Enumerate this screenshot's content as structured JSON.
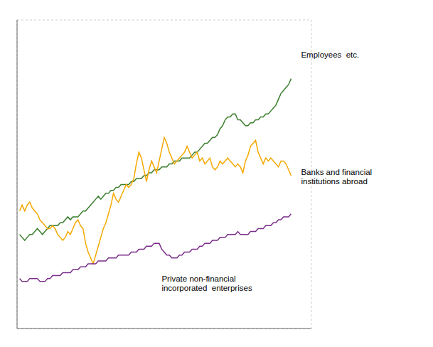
{
  "chart_data": {
    "type": "line",
    "x": [
      0,
      1,
      2,
      3,
      4,
      5,
      6,
      7,
      8,
      9,
      10,
      11,
      12,
      13,
      14,
      15,
      16,
      17,
      18,
      19,
      20,
      21,
      22,
      23,
      24,
      25,
      26,
      27,
      28,
      29,
      30,
      31,
      32,
      33,
      34,
      35,
      36,
      37,
      38,
      39,
      40,
      41,
      42,
      43,
      44,
      45,
      46,
      47,
      48,
      49,
      50,
      51,
      52,
      53,
      54,
      55,
      56,
      57,
      58,
      59,
      60,
      61,
      62,
      63,
      64,
      65,
      66,
      67,
      68,
      69,
      70,
      71,
      72,
      73,
      74,
      75,
      76,
      77,
      78,
      79,
      80,
      81,
      82,
      83,
      84,
      85,
      86,
      87,
      88,
      89,
      90,
      91,
      92,
      93,
      94,
      95,
      96,
      97,
      98,
      99,
      100,
      101,
      102,
      103,
      104,
      105,
      106,
      107
    ],
    "series": [
      {
        "name": "Employees  etc.",
        "color": "#3a7d2c",
        "values": [
          62,
          61,
          60,
          61,
          62,
          62,
          63,
          64,
          63,
          62,
          63,
          64,
          65,
          65,
          65,
          65,
          66,
          66,
          67,
          68,
          67,
          68,
          68,
          68,
          69,
          70,
          70,
          71,
          72,
          73,
          74,
          75,
          74,
          75,
          76,
          76,
          77,
          77,
          78,
          78,
          79,
          79,
          79,
          79,
          80,
          80,
          81,
          81,
          81,
          82,
          82,
          83,
          83,
          84,
          84,
          84,
          85,
          85,
          85,
          86,
          86,
          87,
          87,
          87,
          88,
          88,
          88,
          88,
          89,
          90,
          90,
          91,
          92,
          93,
          93,
          94,
          95,
          95,
          96,
          98,
          99,
          101,
          102,
          102,
          103,
          103,
          101,
          101,
          100,
          99,
          99,
          100,
          100,
          101,
          101,
          102,
          102,
          103,
          103,
          104,
          105,
          106,
          108,
          110,
          111,
          112,
          113,
          115
        ]
      },
      {
        "name": "Banks and financial\ninstitutions abroad",
        "color": "#f5a800",
        "values": [
          70,
          72,
          70,
          72,
          73,
          71,
          70,
          69,
          67,
          66,
          65,
          64,
          64,
          65,
          64,
          62,
          61,
          60,
          61,
          63,
          62,
          64,
          66,
          67,
          65,
          64,
          59,
          56,
          54,
          52,
          55,
          58,
          61,
          64,
          66,
          69,
          72,
          76,
          74,
          73,
          75,
          77,
          79,
          78,
          79,
          81,
          86,
          90,
          88,
          84,
          80,
          84,
          87,
          85,
          83,
          87,
          91,
          95,
          93,
          90,
          88,
          86,
          87,
          88,
          89,
          90,
          92,
          90,
          88,
          89,
          90,
          87,
          88,
          86,
          87,
          88,
          85,
          84,
          85,
          87,
          86,
          87,
          88,
          87,
          86,
          85,
          86,
          85,
          83,
          87,
          89,
          92,
          93,
          94,
          90,
          88,
          86,
          88,
          87,
          88,
          87,
          86,
          85,
          87,
          87,
          86,
          84,
          82
        ]
      },
      {
        "name": "Private non-financial\nincorporated  enterprises",
        "color": "#7b2d8b",
        "values": [
          47,
          46,
          46,
          46,
          47,
          47,
          47,
          47,
          46,
          46,
          46,
          47,
          47,
          48,
          48,
          48,
          48,
          49,
          49,
          49,
          49,
          50,
          50,
          50,
          51,
          51,
          51,
          52,
          52,
          52,
          52,
          53,
          53,
          53,
          53,
          54,
          54,
          54,
          54,
          55,
          55,
          55,
          55,
          55,
          56,
          56,
          56,
          57,
          57,
          57,
          58,
          58,
          58,
          59,
          59,
          59,
          57,
          56,
          55,
          55,
          54,
          54,
          54,
          55,
          55,
          56,
          56,
          56,
          57,
          57,
          57,
          58,
          58,
          59,
          59,
          59,
          60,
          60,
          60,
          61,
          61,
          61,
          62,
          62,
          62,
          62,
          63,
          62,
          62,
          62,
          62,
          63,
          63,
          63,
          64,
          64,
          64,
          65,
          65,
          65,
          66,
          66,
          67,
          67,
          68,
          68,
          68,
          69
        ]
      }
    ],
    "xlim": [
      -1,
      115
    ],
    "xticks": [
      -1,
      5.4444444444,
      11.8888888889,
      18.3333333333,
      24.7777777778,
      31.2222222222,
      37.6666666667,
      44.1111111111,
      50.5555555556,
      57,
      63.4444444444,
      69.8888888889,
      76.3333333333,
      82.7777777778,
      89.2222222222,
      95.6666666667,
      102.1111111111,
      108.5555555556,
      115
    ],
    "ylim": [
      30,
      135
    ],
    "yticks": [
      30,
      43.125,
      56.25,
      69.375,
      82.5,
      95.625,
      108.75,
      121.875,
      135
    ],
    "grid": true,
    "tick_labels": false
  }
}
